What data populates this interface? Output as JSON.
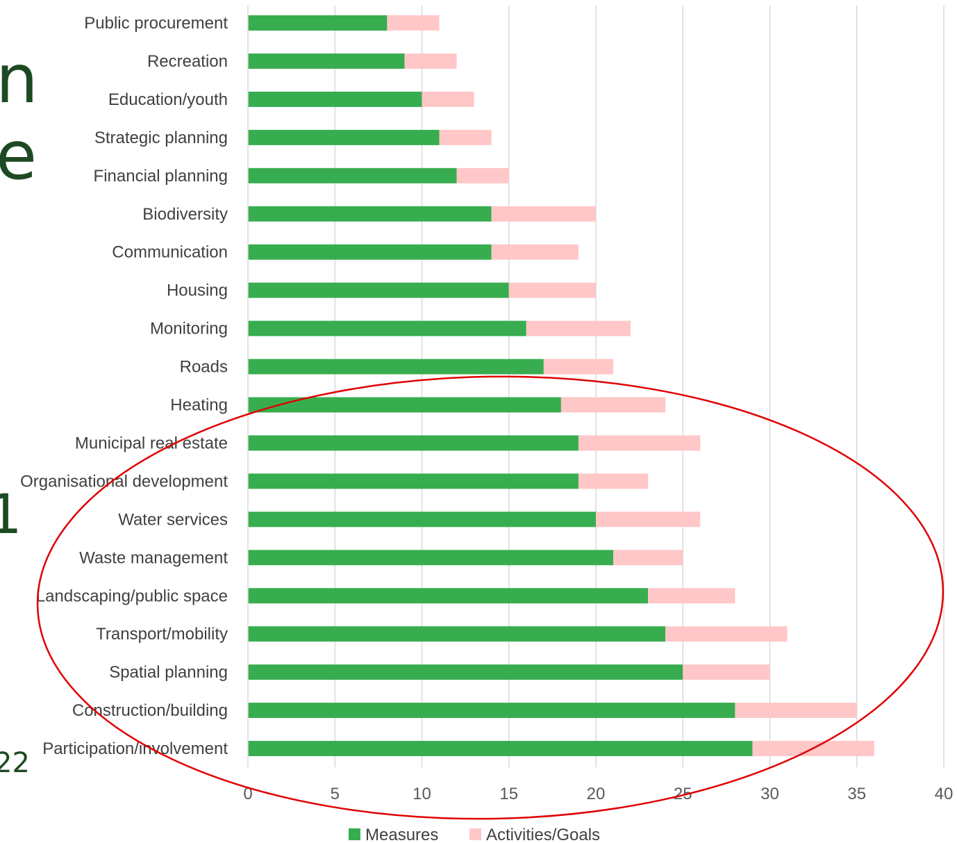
{
  "background_text": {
    "n": "n",
    "e": "e",
    "one": "1",
    "twenty_two": "22"
  },
  "chart_data": {
    "type": "bar",
    "orientation": "horizontal",
    "stacked": true,
    "categories": [
      "Public procurement",
      "Recreation",
      "Education/youth",
      "Strategic planning",
      "Financial planning",
      "Biodiversity",
      "Communication",
      "Housing",
      "Monitoring",
      "Roads",
      "Heating",
      "Municipal real estate",
      "Organisational development",
      "Water services",
      "Waste management",
      "Landscaping/public space",
      "Transport/mobility",
      "Spatial planning",
      "Construction/building",
      "Participation/involvement"
    ],
    "series": [
      {
        "name": "Measures",
        "color": "#37ad4f",
        "values": [
          8,
          9,
          10,
          11,
          12,
          14,
          14,
          15,
          16,
          17,
          18,
          19,
          19,
          20,
          21,
          23,
          24,
          25,
          28,
          29
        ]
      },
      {
        "name": "Activities/Goals",
        "color": "#ffc7c8",
        "values": [
          3,
          3,
          3,
          3,
          3,
          6,
          5,
          5,
          6,
          4,
          6,
          7,
          4,
          6,
          4,
          5,
          7,
          5,
          7,
          7
        ]
      }
    ],
    "xlim": [
      0,
      40
    ],
    "xticks": [
      0,
      5,
      10,
      15,
      20,
      25,
      30,
      35,
      40
    ],
    "grid": "vertical",
    "legend": "bottom-center",
    "annotation": {
      "shape": "ellipse",
      "color": "#e00000",
      "encloses": "Heating to Participation/involvement"
    }
  }
}
